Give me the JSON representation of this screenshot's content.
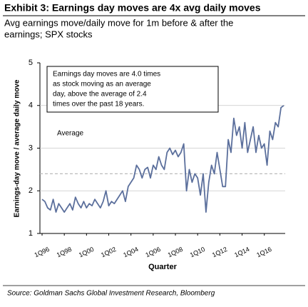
{
  "chart_data": {
    "type": "line",
    "title": "Exhibit 3: Earnings day moves are 4x avg daily moves",
    "subtitle": [
      "Avg earnings move/daily move for 1m before & after the",
      "earnings; SPX stocks"
    ],
    "y_label": "Earnings-day move / average daily move",
    "x_label": "Quarter",
    "source": "Source: Goldman Sachs Global Investment Research, Bloomberg",
    "annotation": [
      "Earnings day moves are 4.0 times",
      "as stock moving as an average",
      "day, above the average of 2.4",
      "times over the past 18 years."
    ],
    "average": {
      "value": 2.4,
      "label": "Average"
    },
    "categories": [
      "1Q96",
      null,
      null,
      null,
      null,
      null,
      null,
      null,
      "1Q98",
      null,
      null,
      null,
      null,
      null,
      null,
      null,
      "1Q00",
      null,
      null,
      null,
      null,
      null,
      null,
      null,
      "1Q02",
      null,
      null,
      null,
      null,
      null,
      null,
      null,
      "1Q04",
      null,
      null,
      null,
      null,
      null,
      null,
      null,
      "1Q06",
      null,
      null,
      null,
      null,
      null,
      null,
      null,
      "1Q08",
      null,
      null,
      null,
      null,
      null,
      null,
      null,
      "1Q10",
      null,
      null,
      null,
      null,
      null,
      null,
      null,
      "1Q12",
      null,
      null,
      null,
      null,
      null,
      null,
      null,
      "1Q14",
      null,
      null,
      null,
      null,
      null,
      null,
      null,
      "1Q16",
      null,
      null,
      null,
      null,
      null,
      null,
      null
    ],
    "series": [
      {
        "name": "Earnings move / daily move",
        "color": "#5b6f9c",
        "values": [
          1.8,
          1.75,
          1.6,
          1.55,
          1.8,
          1.5,
          1.7,
          1.6,
          1.5,
          1.6,
          1.7,
          1.55,
          1.85,
          1.7,
          1.6,
          1.75,
          1.6,
          1.7,
          1.65,
          1.8,
          1.7,
          1.6,
          1.75,
          2.0,
          1.65,
          1.75,
          1.7,
          1.8,
          1.9,
          2.0,
          1.75,
          2.1,
          2.2,
          2.3,
          2.6,
          2.5,
          2.3,
          2.5,
          2.55,
          2.3,
          2.6,
          2.5,
          2.8,
          2.6,
          2.5,
          2.9,
          3.0,
          2.85,
          2.95,
          2.8,
          2.9,
          3.1,
          2.0,
          2.5,
          2.2,
          2.4,
          2.3,
          1.9,
          2.4,
          1.5,
          2.2,
          2.6,
          2.4,
          2.9,
          2.5,
          2.1,
          2.1,
          3.2,
          2.9,
          3.7,
          3.3,
          3.5,
          3.0,
          3.6,
          2.9,
          3.2,
          3.5,
          2.9,
          3.3,
          3.0,
          3.1,
          2.6,
          3.4,
          3.2,
          3.6,
          3.5,
          3.95,
          4.0
        ]
      }
    ],
    "ylim": [
      1,
      5
    ],
    "yticks": [
      1,
      2,
      3,
      4,
      5
    ],
    "grid": true
  }
}
